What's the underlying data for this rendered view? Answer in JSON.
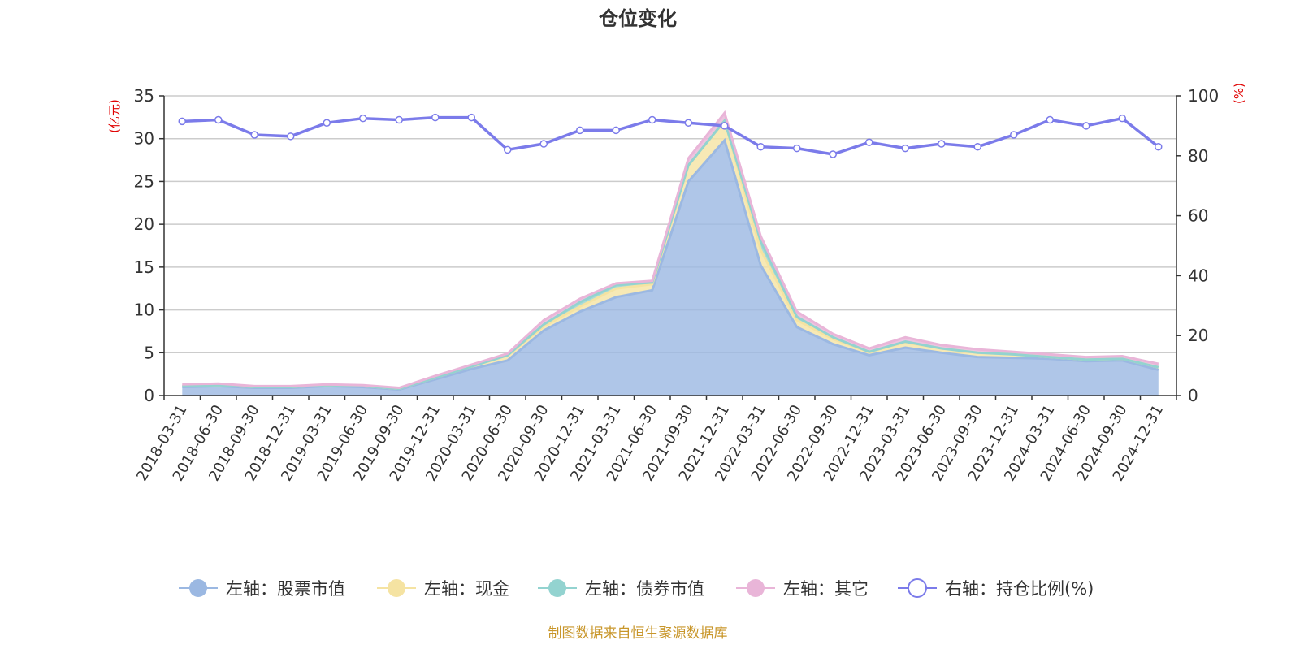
{
  "chart_data": {
    "type": "area",
    "title": "仓位变化",
    "left_axis_unit": "(亿元)",
    "right_axis_unit": "(%)",
    "left_ylim": [
      0,
      35
    ],
    "left_yticks": [
      "0",
      "5",
      "10",
      "15",
      "20",
      "25",
      "30",
      "35"
    ],
    "right_ylim": [
      0,
      100
    ],
    "right_yticks": [
      "0",
      "20",
      "40",
      "60",
      "80",
      "100"
    ],
    "grid": true,
    "legend_position": "bottom",
    "stacked": true,
    "categories": [
      "2018-03-31",
      "2018-06-30",
      "2018-09-30",
      "2018-12-31",
      "2019-03-31",
      "2019-06-30",
      "2019-09-30",
      "2019-12-31",
      "2020-03-31",
      "2020-06-30",
      "2020-09-30",
      "2020-12-31",
      "2021-03-31",
      "2021-06-30",
      "2021-09-30",
      "2021-12-31",
      "2022-03-31",
      "2022-06-30",
      "2022-09-30",
      "2022-12-31",
      "2023-03-31",
      "2023-06-30",
      "2023-09-30",
      "2023-12-31",
      "2024-03-31",
      "2024-06-30",
      "2024-09-30",
      "2024-12-31"
    ],
    "series": [
      {
        "name": "左轴：股票市值",
        "axis": "left",
        "color": "#9bb8e2",
        "values": [
          1.0,
          1.1,
          0.9,
          0.9,
          1.1,
          1.0,
          0.7,
          1.9,
          3.1,
          4.1,
          7.6,
          9.8,
          11.5,
          12.3,
          25.0,
          29.8,
          15.2,
          8.0,
          6.0,
          4.7,
          5.6,
          5.0,
          4.5,
          4.4,
          4.3,
          4.0,
          4.1,
          3.0
        ]
      },
      {
        "name": "左轴：现金",
        "axis": "left",
        "color": "#f5e3a2",
        "values": [
          0.1,
          0.1,
          0.1,
          0.1,
          0.1,
          0.1,
          0.1,
          0.2,
          0.3,
          0.6,
          0.5,
          0.6,
          1.0,
          0.7,
          1.9,
          2.3,
          1.8,
          0.8,
          0.6,
          0.4,
          0.6,
          0.5,
          0.5,
          0.4,
          0.2,
          0.2,
          0.2,
          0.3
        ]
      },
      {
        "name": "左轴：债券市值",
        "axis": "left",
        "color": "#93d3d0",
        "values": [
          0.0,
          0.0,
          0.0,
          0.0,
          0.0,
          0.0,
          0.0,
          0.0,
          0.0,
          0.0,
          0.2,
          0.5,
          0.4,
          0.2,
          0.0,
          0.0,
          1.0,
          0.4,
          0.2,
          0.0,
          0.1,
          0.0,
          0.0,
          0.0,
          0.0,
          0.0,
          0.0,
          0.0
        ]
      },
      {
        "name": "左轴：其它",
        "axis": "left",
        "color": "#e9b5d8",
        "values": [
          0.2,
          0.2,
          0.1,
          0.1,
          0.1,
          0.1,
          0.1,
          0.2,
          0.2,
          0.2,
          0.5,
          0.4,
          0.2,
          0.2,
          0.8,
          0.9,
          0.6,
          0.6,
          0.4,
          0.4,
          0.5,
          0.4,
          0.4,
          0.3,
          0.3,
          0.3,
          0.3,
          0.4
        ]
      },
      {
        "name": "右轴：持仓比例(%)",
        "axis": "right",
        "color": "#7b7bea",
        "values": [
          91.5,
          92.0,
          87.0,
          86.5,
          91.0,
          92.5,
          92.0,
          92.8,
          92.8,
          82.0,
          84.0,
          88.5,
          88.5,
          92.0,
          91.0,
          90.0,
          83.0,
          82.5,
          80.5,
          84.5,
          82.5,
          84.0,
          83.0,
          87.0,
          92.0,
          90.0,
          92.5,
          83.0
        ]
      }
    ],
    "source": "制图数据来自恒生聚源数据库"
  }
}
